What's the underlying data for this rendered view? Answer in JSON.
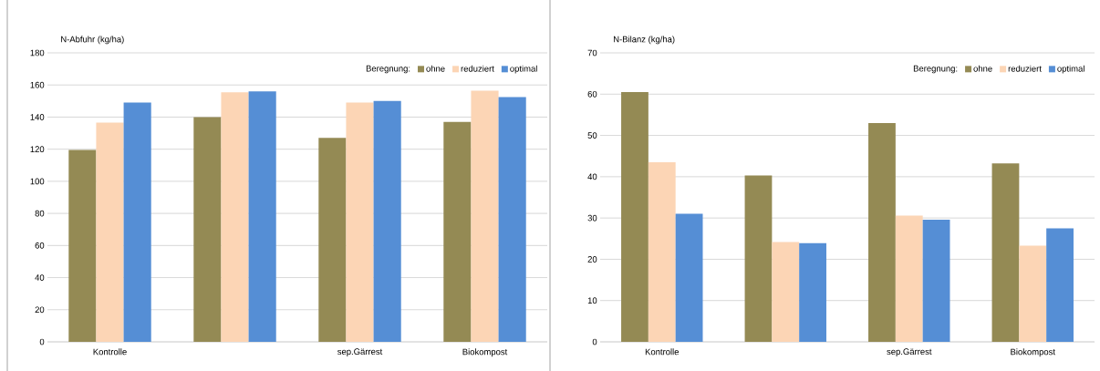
{
  "chart_data": [
    {
      "type": "bar",
      "ylabel": "N-Abfuhr (kg/ha)",
      "legend_title": "Beregnung:",
      "categories": [
        "Kontrolle",
        null,
        "sep.Gärrest",
        "Biokompost"
      ],
      "series": [
        {
          "name": "ohne",
          "color": "#948a54",
          "values": [
            119.5,
            140,
            127,
            137
          ]
        },
        {
          "name": "reduziert",
          "color": "#fcd5b5",
          "values": [
            136.5,
            155.5,
            149,
            156.5
          ]
        },
        {
          "name": "optimal",
          "color": "#558ed5",
          "values": [
            149,
            156,
            150,
            152.5
          ]
        }
      ],
      "ylim": [
        0,
        180
      ],
      "yticks": [
        0,
        20,
        40,
        60,
        80,
        100,
        120,
        140,
        160,
        180
      ],
      "grid": "y",
      "legend": "top right"
    },
    {
      "type": "bar",
      "ylabel": "N-Bilanz (kg/ha)",
      "legend_title": "Beregnung:",
      "categories": [
        "Kontrolle",
        null,
        "sep.Gärrest",
        "Biokompost"
      ],
      "series": [
        {
          "name": "ohne",
          "color": "#948a54",
          "values": [
            60.5,
            40.3,
            53,
            43.2
          ]
        },
        {
          "name": "reduziert",
          "color": "#fcd5b5",
          "values": [
            43.5,
            24.2,
            30.6,
            23.3
          ]
        },
        {
          "name": "optimal",
          "color": "#558ed5",
          "values": [
            31,
            23.9,
            29.6,
            27.5
          ]
        }
      ],
      "ylim": [
        0,
        70
      ],
      "yticks": [
        0,
        10,
        20,
        30,
        40,
        50,
        60,
        70
      ],
      "grid": "y",
      "legend": "top right"
    }
  ]
}
